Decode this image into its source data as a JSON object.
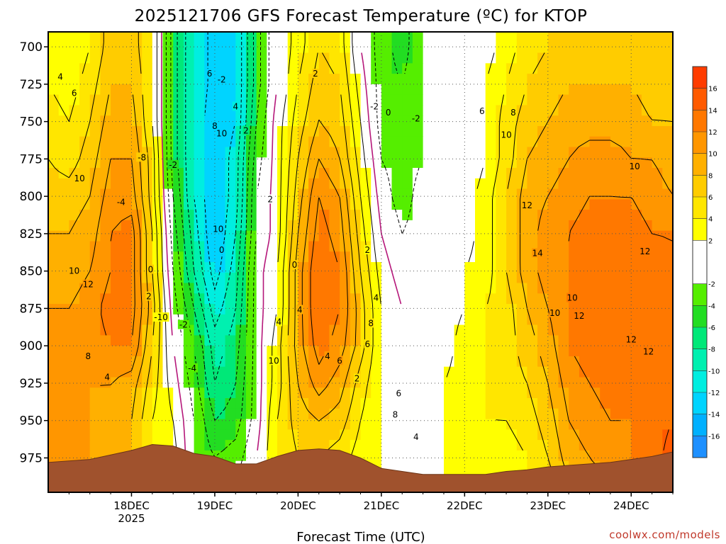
{
  "chart_data": {
    "type": "heatmap",
    "title": "2025121706 GFS Forecast Temperature (ºC) for KTOP",
    "xlabel": "Forecast Time (UTC)",
    "ylabel": "",
    "credit": "coolwx.com/models",
    "x_ticks": [
      {
        "hours": 18,
        "label": "18DEC",
        "sublabel": "2025"
      },
      {
        "hours": 42,
        "label": "19DEC",
        "sublabel": ""
      },
      {
        "hours": 66,
        "label": "20DEC",
        "sublabel": ""
      },
      {
        "hours": 90,
        "label": "21DEC",
        "sublabel": ""
      },
      {
        "hours": 114,
        "label": "22DEC",
        "sublabel": ""
      },
      {
        "hours": 138,
        "label": "23DEC",
        "sublabel": ""
      },
      {
        "hours": 162,
        "label": "24DEC",
        "sublabel": ""
      }
    ],
    "xlim": [
      -6,
      174
    ],
    "y_ticks": [
      700,
      725,
      750,
      775,
      800,
      825,
      850,
      875,
      900,
      925,
      950,
      975
    ],
    "ylim": [
      690,
      998
    ],
    "y_reversed": true,
    "levels": [
      700,
      725,
      750,
      775,
      800,
      825,
      850,
      875,
      900,
      925,
      950,
      975,
      990
    ],
    "times": [
      -6,
      0,
      6,
      12,
      18,
      24,
      30,
      36,
      42,
      48,
      54,
      60,
      66,
      72,
      78,
      84,
      90,
      96,
      102,
      108,
      114,
      120,
      126,
      132,
      138,
      144,
      150,
      156,
      162,
      168,
      174
    ],
    "temperature_c": [
      [
        3,
        2,
        4,
        7,
        7,
        4,
        -5,
        -10,
        -13,
        -12,
        -5,
        0,
        3,
        6,
        5,
        0,
        -3,
        -5,
        -2,
        -1,
        0,
        1,
        3,
        5,
        6,
        7,
        7,
        7,
        7,
        6,
        6
      ],
      [
        4,
        3,
        5,
        8,
        8,
        4,
        -5,
        -10,
        -13,
        -12,
        -5,
        0,
        4,
        7,
        6,
        1,
        -3,
        -4,
        -2,
        -1,
        0,
        2,
        4,
        6,
        7,
        8,
        8,
        8,
        8,
        7,
        7
      ],
      [
        5,
        4,
        6,
        9,
        9,
        4,
        -5,
        -10,
        -14,
        -12,
        -4,
        1,
        5,
        8,
        7,
        2,
        -3,
        -3,
        -2,
        -1,
        0,
        2,
        5,
        7,
        8,
        9,
        9,
        9,
        9,
        8,
        8
      ],
      [
        6,
        5,
        7,
        10,
        10,
        5,
        -5,
        -10,
        -14,
        -11,
        -3,
        1,
        6,
        10,
        8,
        3,
        -2,
        -3,
        -2,
        0,
        0,
        2,
        5,
        8,
        9,
        10,
        11,
        11,
        10,
        10,
        9
      ],
      [
        7,
        7,
        8,
        11,
        11,
        5,
        -4,
        -10,
        -14,
        -11,
        -2,
        1,
        7,
        12,
        10,
        4,
        -1,
        -3,
        -1,
        0,
        1,
        3,
        6,
        9,
        10,
        11,
        12,
        12,
        12,
        11,
        10
      ],
      [
        8,
        8,
        9,
        12,
        13,
        6,
        -3,
        -9,
        -14,
        -10,
        -2,
        1,
        8,
        13,
        11,
        5,
        0,
        -2,
        -1,
        0,
        1,
        3,
        6,
        9,
        11,
        12,
        13,
        13,
        13,
        12,
        12
      ],
      [
        9,
        9,
        10,
        12,
        13,
        6,
        -2,
        -8,
        -13,
        -9,
        -1,
        2,
        9,
        14,
        12,
        6,
        1,
        -1,
        0,
        0,
        2,
        3,
        6,
        9,
        11,
        12,
        14,
        14,
        13,
        13,
        12
      ],
      [
        10,
        10,
        11,
        13,
        13,
        7,
        -1,
        -6,
        -11,
        -8,
        -1,
        2,
        9,
        14,
        12,
        7,
        2,
        0,
        0,
        1,
        2,
        4,
        5,
        8,
        10,
        12,
        13,
        13,
        13,
        13,
        13
      ],
      [
        11,
        11,
        11,
        12,
        12,
        6,
        0,
        -4,
        -9,
        -7,
        -1,
        3,
        9,
        13,
        11,
        7,
        2,
        0,
        0,
        1,
        3,
        4,
        5,
        7,
        9,
        12,
        13,
        13,
        13,
        13,
        13
      ],
      [
        11,
        11,
        10,
        10,
        9,
        5,
        1,
        -3,
        -8,
        -6,
        -1,
        3,
        8,
        11,
        9,
        5,
        2,
        0,
        0,
        2,
        3,
        4,
        5,
        6,
        8,
        11,
        12,
        13,
        12,
        13,
        14
      ],
      [
        11,
        11,
        10,
        9,
        8,
        4,
        2,
        -2,
        -6,
        -5,
        -1,
        4,
        7,
        8,
        7,
        4,
        2,
        0,
        0,
        2,
        3,
        4,
        4,
        5,
        7,
        10,
        11,
        12,
        12,
        13,
        14
      ],
      [
        10,
        10,
        10,
        9,
        8,
        4,
        3,
        -2,
        -4,
        -3,
        0,
        4,
        6,
        6,
        5,
        3,
        2,
        0,
        0,
        2,
        2,
        3,
        3,
        4,
        6,
        9,
        10,
        11,
        12,
        13,
        15
      ],
      [
        10,
        10,
        10,
        9,
        8,
        4,
        3,
        -1,
        -2,
        -2,
        0,
        4,
        5,
        5,
        4,
        3,
        2,
        0,
        0,
        2,
        2,
        2,
        3,
        4,
        5,
        8,
        9,
        10,
        11,
        13,
        15
      ]
    ],
    "contour_interval": 2,
    "contour_labels": [
      {
        "v": "4"
      },
      {
        "v": "6"
      },
      {
        "v": "10"
      },
      {
        "v": "10"
      },
      {
        "v": "12"
      },
      {
        "v": "8"
      },
      {
        "v": "4"
      },
      {
        "v": "-4"
      },
      {
        "v": "-8"
      },
      {
        "v": "-2"
      },
      {
        "v": "0"
      },
      {
        "v": "2"
      },
      {
        "v": "-10"
      },
      {
        "v": "-2"
      },
      {
        "v": "-2"
      },
      {
        "v": "-4"
      },
      {
        "v": "0"
      },
      {
        "v": "6"
      },
      {
        "v": "4"
      },
      {
        "v": "8"
      },
      {
        "v": "10"
      },
      {
        "v": "2"
      },
      {
        "v": "10"
      },
      {
        "v": "10"
      },
      {
        "v": "4"
      },
      {
        "v": "2"
      },
      {
        "v": "-2"
      },
      {
        "v": "0"
      },
      {
        "v": "2"
      },
      {
        "v": "0"
      },
      {
        "v": "4"
      },
      {
        "v": "2"
      },
      {
        "v": "4"
      },
      {
        "v": "6"
      },
      {
        "v": "8"
      },
      {
        "v": "6"
      },
      {
        "v": "4"
      },
      {
        "v": "6"
      },
      {
        "v": "2"
      },
      {
        "v": "8"
      },
      {
        "v": "4"
      },
      {
        "v": "6"
      },
      {
        "v": "8"
      },
      {
        "v": "10"
      },
      {
        "v": "12"
      },
      {
        "v": "14"
      },
      {
        "v": "10"
      },
      {
        "v": "10"
      },
      {
        "v": "12"
      },
      {
        "v": "12"
      },
      {
        "v": "12"
      },
      {
        "v": "12"
      },
      {
        "v": "10"
      },
      {
        "v": "-2"
      }
    ],
    "colorbar": {
      "min": -18,
      "max": 18,
      "ticks": [
        "16",
        "14",
        "12",
        "10",
        "8",
        "6",
        "4",
        "2",
        "-2",
        "-4",
        "-6",
        "-8",
        "-10",
        "-12",
        "-14",
        "-16"
      ],
      "bins": [
        {
          "lo": -18,
          "hi": -16,
          "color": "#1e90ff"
        },
        {
          "lo": -16,
          "hi": -14,
          "color": "#00b0ff"
        },
        {
          "lo": -14,
          "hi": -12,
          "color": "#00d4ff"
        },
        {
          "lo": -12,
          "hi": -10,
          "color": "#00eee0"
        },
        {
          "lo": -10,
          "hi": -8,
          "color": "#00f0b0"
        },
        {
          "lo": -8,
          "hi": -6,
          "color": "#00e878"
        },
        {
          "lo": -6,
          "hi": -4,
          "color": "#22dd22"
        },
        {
          "lo": -4,
          "hi": -2,
          "color": "#55ee00"
        },
        {
          "lo": -2,
          "hi": 2,
          "color": "#ffffff"
        },
        {
          "lo": 2,
          "hi": 4,
          "color": "#ffff00"
        },
        {
          "lo": 4,
          "hi": 6,
          "color": "#ffe600"
        },
        {
          "lo": 6,
          "hi": 8,
          "color": "#ffcc00"
        },
        {
          "lo": 8,
          "hi": 10,
          "color": "#ffb000"
        },
        {
          "lo": 10,
          "hi": 12,
          "color": "#ff9600"
        },
        {
          "lo": 12,
          "hi": 14,
          "color": "#ff7800"
        },
        {
          "lo": 14,
          "hi": 16,
          "color": "#ff5a00"
        },
        {
          "lo": 16,
          "hi": 18,
          "color": "#ff3c00"
        }
      ]
    },
    "surface_pressure": [
      {
        "t": -6,
        "p": 978
      },
      {
        "t": 6,
        "p": 976
      },
      {
        "t": 12,
        "p": 973
      },
      {
        "t": 18,
        "p": 970
      },
      {
        "t": 24,
        "p": 966
      },
      {
        "t": 30,
        "p": 967
      },
      {
        "t": 36,
        "p": 972
      },
      {
        "t": 42,
        "p": 974
      },
      {
        "t": 48,
        "p": 979
      },
      {
        "t": 54,
        "p": 979
      },
      {
        "t": 60,
        "p": 974
      },
      {
        "t": 66,
        "p": 970
      },
      {
        "t": 72,
        "p": 969
      },
      {
        "t": 78,
        "p": 970
      },
      {
        "t": 84,
        "p": 975
      },
      {
        "t": 90,
        "p": 982
      },
      {
        "t": 96,
        "p": 984
      },
      {
        "t": 102,
        "p": 986
      },
      {
        "t": 108,
        "p": 986
      },
      {
        "t": 114,
        "p": 986
      },
      {
        "t": 120,
        "p": 986
      },
      {
        "t": 126,
        "p": 984
      },
      {
        "t": 132,
        "p": 983
      },
      {
        "t": 138,
        "p": 981
      },
      {
        "t": 144,
        "p": 980
      },
      {
        "t": 150,
        "p": 979
      },
      {
        "t": 156,
        "p": 978
      },
      {
        "t": 162,
        "p": 976
      },
      {
        "t": 168,
        "p": 974
      },
      {
        "t": 174,
        "p": 971
      }
    ],
    "ground_color": "#a0522d",
    "grid": true,
    "legend": "right (colorbar)"
  }
}
